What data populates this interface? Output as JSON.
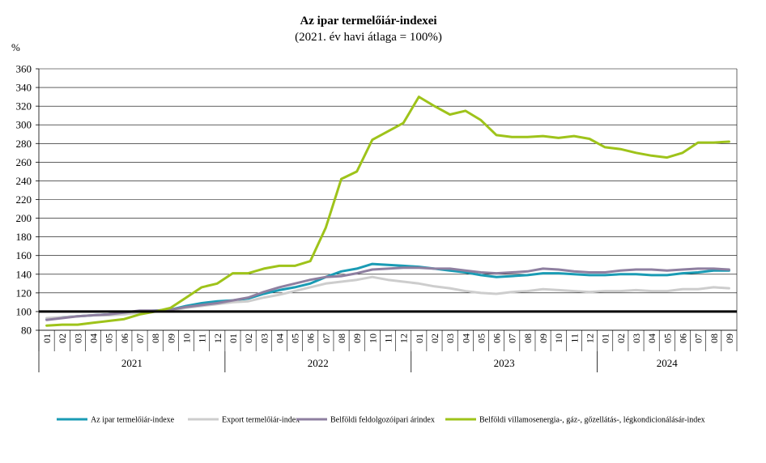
{
  "chart_data": {
    "type": "line",
    "title": "Az ipar termelőiár-indexei",
    "subtitle": "(2021. év havi átlaga = 100%)",
    "ylabel": "%",
    "ylim": [
      80,
      360
    ],
    "yticks": [
      80,
      100,
      120,
      140,
      160,
      180,
      200,
      220,
      240,
      260,
      280,
      300,
      320,
      340,
      360
    ],
    "grid": true,
    "legend_position": "bottom",
    "categories": [
      "01",
      "02",
      "03",
      "04",
      "05",
      "06",
      "07",
      "08",
      "09",
      "10",
      "11",
      "12",
      "01",
      "02",
      "03",
      "04",
      "05",
      "06",
      "07",
      "08",
      "09",
      "10",
      "11",
      "12",
      "01",
      "02",
      "03",
      "04",
      "05",
      "06",
      "07",
      "08",
      "09",
      "10",
      "11",
      "12",
      "01",
      "02",
      "03",
      "04",
      "05",
      "06",
      "07",
      "08",
      "09"
    ],
    "years": [
      {
        "label": "2021",
        "months": 12
      },
      {
        "label": "2022",
        "months": 12
      },
      {
        "label": "2023",
        "months": 12
      },
      {
        "label": "2024",
        "months": 9
      }
    ],
    "reference_line": 100,
    "series": [
      {
        "name": "Az ipar termelőiár-indexe",
        "color": "#1a9bb4",
        "values": [
          92,
          94,
          95,
          96,
          97,
          98,
          100,
          101,
          102,
          106,
          109,
          111,
          112,
          114,
          119,
          123,
          126,
          130,
          137,
          143,
          146,
          151,
          150,
          149,
          148,
          146,
          144,
          142,
          139,
          137,
          138,
          139,
          141,
          141,
          140,
          139,
          139,
          140,
          140,
          139,
          139,
          141,
          142,
          144,
          144
        ]
      },
      {
        "name": "Export termelőiár-index",
        "color": "#cdcdcd",
        "values": [
          93,
          94,
          95,
          96,
          96,
          97,
          99,
          100,
          101,
          104,
          106,
          108,
          110,
          111,
          115,
          118,
          122,
          126,
          130,
          132,
          134,
          137,
          134,
          132,
          130,
          127,
          125,
          122,
          120,
          119,
          121,
          122,
          124,
          123,
          122,
          121,
          122,
          122,
          123,
          122,
          122,
          124,
          124,
          126,
          125
        ]
      },
      {
        "name": "Belföldi feldolgozóipari árindex",
        "color": "#8e7fa0",
        "values": [
          91,
          93,
          95,
          96,
          97,
          99,
          101,
          101,
          102,
          105,
          107,
          109,
          112,
          115,
          121,
          126,
          130,
          134,
          137,
          138,
          141,
          145,
          146,
          147,
          147,
          146,
          146,
          144,
          142,
          141,
          142,
          143,
          146,
          145,
          143,
          142,
          142,
          144,
          145,
          145,
          144,
          145,
          146,
          146,
          145
        ]
      },
      {
        "name": "Belföldi villamosenergia-, gáz-, gőzellátás-, légkondicionálásár-index",
        "color": "#9ec31a",
        "values": [
          85,
          86,
          86,
          88,
          90,
          92,
          97,
          100,
          104,
          115,
          126,
          130,
          141,
          141,
          146,
          149,
          149,
          154,
          190,
          242,
          250,
          284,
          293,
          302,
          330,
          320,
          311,
          315,
          305,
          289,
          287,
          287,
          288,
          286,
          288,
          285,
          276,
          274,
          270,
          267,
          265,
          270,
          281,
          281,
          282
        ]
      }
    ]
  }
}
